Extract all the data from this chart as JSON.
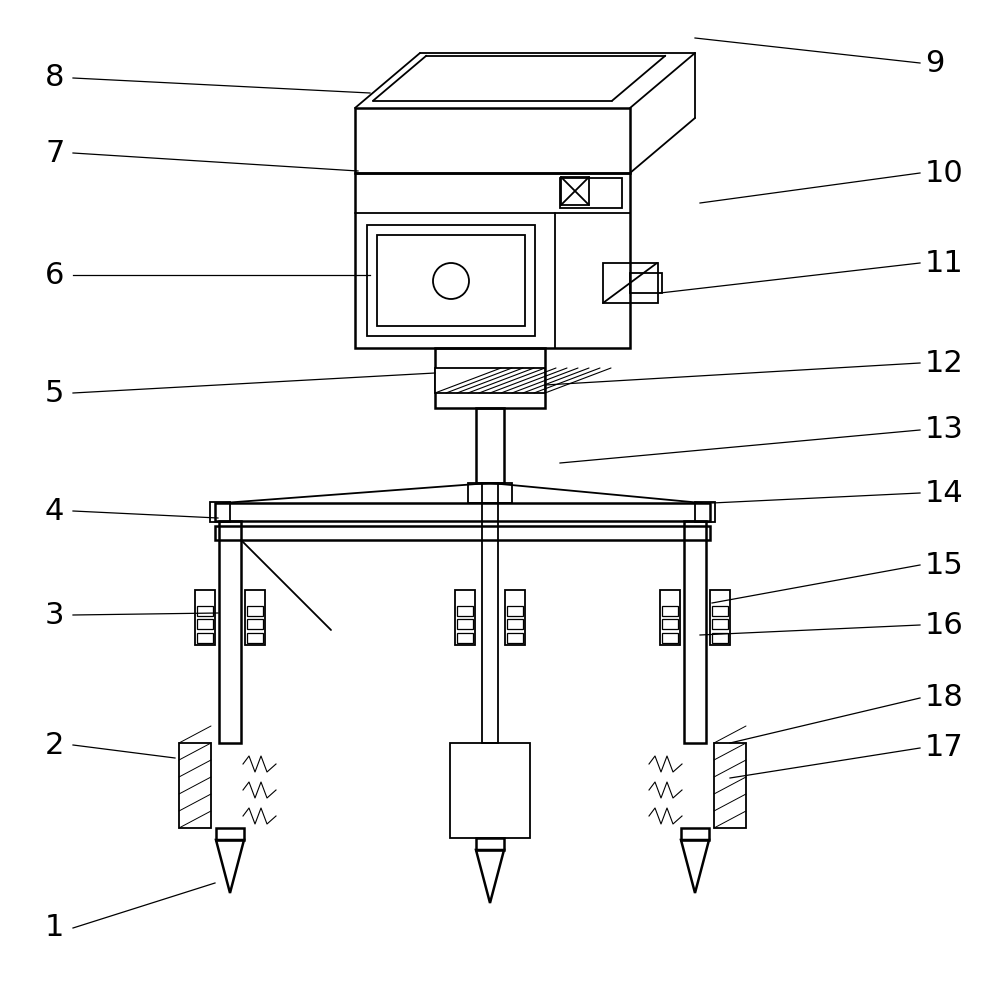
{
  "background_color": "#ffffff",
  "line_color": "#000000",
  "lw": 1.3,
  "lw2": 1.8,
  "figsize": [
    10.0,
    9.93
  ],
  "dpi": 100
}
